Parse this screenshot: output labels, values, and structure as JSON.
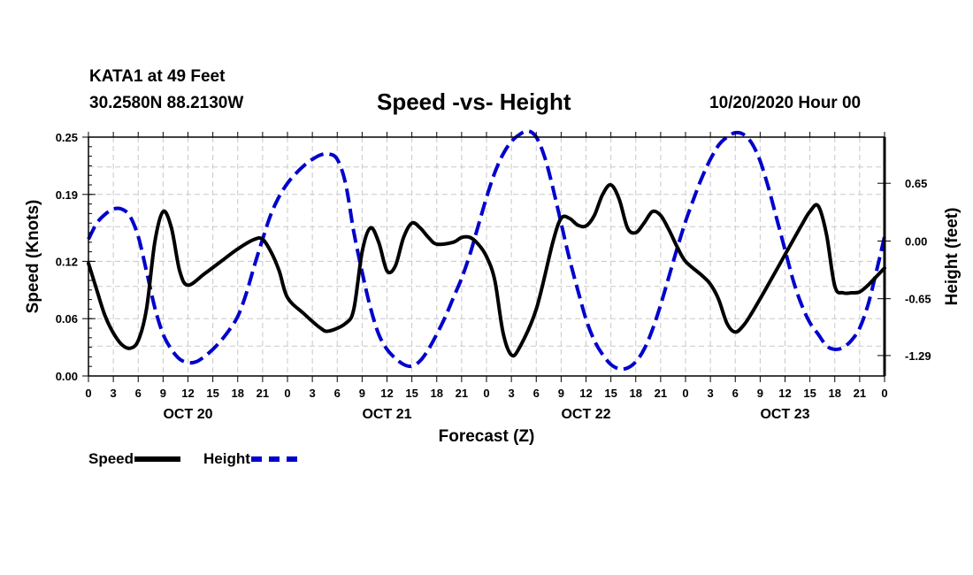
{
  "header": {
    "station": "KATA1 at 49 Feet",
    "coords": "30.2580N 88.2130W",
    "date": "10/20/2020 Hour 00"
  },
  "chart_data": {
    "type": "line",
    "title": "Speed -vs- Height",
    "xlabel": "Forecast (Z)",
    "ylabel": "Speed (Knots)",
    "y2label": "Height (feet)",
    "xlim": [
      0,
      96
    ],
    "ylim": [
      0,
      0.25
    ],
    "y2lim": [
      -1.52,
      1.17
    ],
    "grid": true,
    "legend_position": "bottom-left",
    "x_ticks": [
      0,
      3,
      6,
      9,
      12,
      15,
      18,
      21,
      24,
      27,
      30,
      33,
      36,
      39,
      42,
      45,
      48,
      51,
      54,
      57,
      60,
      63,
      66,
      69,
      72,
      75,
      78,
      81,
      84,
      87,
      90,
      93,
      96
    ],
    "x_tick_labels": [
      "0",
      "3",
      "6",
      "9",
      "12",
      "15",
      "18",
      "21",
      "0",
      "3",
      "6",
      "9",
      "12",
      "15",
      "18",
      "21",
      "0",
      "3",
      "6",
      "9",
      "12",
      "15",
      "18",
      "21",
      "0",
      "3",
      "6",
      "9",
      "12",
      "15",
      "18",
      "21",
      "0"
    ],
    "day_labels": [
      {
        "x": 12,
        "label": "OCT 20"
      },
      {
        "x": 36,
        "label": "OCT 21"
      },
      {
        "x": 60,
        "label": "OCT 22"
      },
      {
        "x": 84,
        "label": "OCT 23"
      }
    ],
    "y_ticks": [
      0.0,
      0.06,
      0.12,
      0.19,
      0.25
    ],
    "y_tick_labels": [
      "0.00",
      "0.06",
      "0.12",
      "0.19",
      "0.25"
    ],
    "y2_ticks": [
      0.65,
      0.0,
      -0.65,
      -1.29
    ],
    "y2_tick_labels": [
      "0.65",
      "0.00",
      "-0.65",
      "-1.29"
    ],
    "series": [
      {
        "name": "Speed",
        "axis": "left",
        "color": "#000000",
        "style": "solid",
        "points": [
          [
            0,
            0.118
          ],
          [
            1,
            0.09
          ],
          [
            2,
            0.063
          ],
          [
            3,
            0.045
          ],
          [
            4,
            0.033
          ],
          [
            5,
            0.029
          ],
          [
            6,
            0.037
          ],
          [
            7,
            0.07
          ],
          [
            8,
            0.14
          ],
          [
            9,
            0.172
          ],
          [
            10,
            0.155
          ],
          [
            11,
            0.11
          ],
          [
            12,
            0.095
          ],
          [
            14,
            0.107
          ],
          [
            16,
            0.12
          ],
          [
            18,
            0.133
          ],
          [
            20,
            0.143
          ],
          [
            21,
            0.143
          ],
          [
            22,
            0.13
          ],
          [
            23,
            0.11
          ],
          [
            24,
            0.082
          ],
          [
            26,
            0.065
          ],
          [
            28,
            0.05
          ],
          [
            29,
            0.047
          ],
          [
            31,
            0.055
          ],
          [
            32,
            0.07
          ],
          [
            33,
            0.13
          ],
          [
            34,
            0.155
          ],
          [
            35,
            0.14
          ],
          [
            36,
            0.11
          ],
          [
            37,
            0.115
          ],
          [
            38,
            0.145
          ],
          [
            39,
            0.16
          ],
          [
            40,
            0.155
          ],
          [
            41,
            0.145
          ],
          [
            42,
            0.138
          ],
          [
            44,
            0.14
          ],
          [
            45,
            0.145
          ],
          [
            46,
            0.145
          ],
          [
            47,
            0.138
          ],
          [
            48,
            0.125
          ],
          [
            49,
            0.1
          ],
          [
            50,
            0.045
          ],
          [
            51,
            0.022
          ],
          [
            52,
            0.03
          ],
          [
            54,
            0.07
          ],
          [
            56,
            0.14
          ],
          [
            57,
            0.165
          ],
          [
            58,
            0.165
          ],
          [
            59,
            0.158
          ],
          [
            60,
            0.157
          ],
          [
            61,
            0.168
          ],
          [
            62,
            0.19
          ],
          [
            63,
            0.2
          ],
          [
            64,
            0.185
          ],
          [
            65,
            0.155
          ],
          [
            66,
            0.15
          ],
          [
            67,
            0.16
          ],
          [
            68,
            0.172
          ],
          [
            69,
            0.168
          ],
          [
            70,
            0.153
          ],
          [
            71,
            0.135
          ],
          [
            72,
            0.12
          ],
          [
            74,
            0.105
          ],
          [
            75,
            0.096
          ],
          [
            76,
            0.08
          ],
          [
            77,
            0.055
          ],
          [
            78,
            0.046
          ],
          [
            79,
            0.053
          ],
          [
            80,
            0.066
          ],
          [
            82,
            0.096
          ],
          [
            84,
            0.127
          ],
          [
            86,
            0.158
          ],
          [
            87,
            0.172
          ],
          [
            88,
            0.178
          ],
          [
            89,
            0.148
          ],
          [
            90,
            0.094
          ],
          [
            91,
            0.087
          ],
          [
            92,
            0.087
          ],
          [
            93,
            0.088
          ],
          [
            94,
            0.095
          ],
          [
            96,
            0.113
          ]
        ]
      },
      {
        "name": "Height",
        "axis": "right",
        "color": "#0000cc",
        "style": "dashed",
        "points": [
          [
            0,
            0.02
          ],
          [
            1,
            0.2
          ],
          [
            2,
            0.3
          ],
          [
            3,
            0.36
          ],
          [
            4,
            0.36
          ],
          [
            5,
            0.28
          ],
          [
            6,
            0.05
          ],
          [
            7,
            -0.34
          ],
          [
            8,
            -0.75
          ],
          [
            9,
            -1.05
          ],
          [
            10,
            -1.22
          ],
          [
            11,
            -1.33
          ],
          [
            12,
            -1.37
          ],
          [
            13,
            -1.36
          ],
          [
            14,
            -1.3
          ],
          [
            15,
            -1.22
          ],
          [
            16,
            -1.12
          ],
          [
            17,
            -1.0
          ],
          [
            18,
            -0.85
          ],
          [
            19,
            -0.6
          ],
          [
            20,
            -0.28
          ],
          [
            21,
            0.02
          ],
          [
            22,
            0.3
          ],
          [
            23,
            0.5
          ],
          [
            24,
            0.65
          ],
          [
            25,
            0.76
          ],
          [
            26,
            0.85
          ],
          [
            27,
            0.92
          ],
          [
            28,
            0.97
          ],
          [
            29,
            0.98
          ],
          [
            30,
            0.92
          ],
          [
            31,
            0.65
          ],
          [
            32,
            0.1
          ],
          [
            33,
            -0.35
          ],
          [
            34,
            -0.75
          ],
          [
            35,
            -1.05
          ],
          [
            36,
            -1.22
          ],
          [
            37,
            -1.32
          ],
          [
            38,
            -1.39
          ],
          [
            39,
            -1.41
          ],
          [
            40,
            -1.35
          ],
          [
            41,
            -1.22
          ],
          [
            42,
            -1.05
          ],
          [
            43,
            -0.86
          ],
          [
            44,
            -0.64
          ],
          [
            45,
            -0.42
          ],
          [
            46,
            -0.15
          ],
          [
            47,
            0.17
          ],
          [
            48,
            0.49
          ],
          [
            49,
            0.77
          ],
          [
            50,
            0.98
          ],
          [
            51,
            1.12
          ],
          [
            52,
            1.2
          ],
          [
            53,
            1.24
          ],
          [
            54,
            1.17
          ],
          [
            55,
            0.95
          ],
          [
            56,
            0.6
          ],
          [
            57,
            0.2
          ],
          [
            58,
            -0.2
          ],
          [
            59,
            -0.55
          ],
          [
            60,
            -0.88
          ],
          [
            61,
            -1.12
          ],
          [
            62,
            -1.28
          ],
          [
            63,
            -1.39
          ],
          [
            64,
            -1.44
          ],
          [
            65,
            -1.43
          ],
          [
            66,
            -1.36
          ],
          [
            67,
            -1.22
          ],
          [
            68,
            -1.0
          ],
          [
            69,
            -0.72
          ],
          [
            70,
            -0.4
          ],
          [
            71,
            -0.08
          ],
          [
            72,
            0.22
          ],
          [
            73,
            0.48
          ],
          [
            74,
            0.72
          ],
          [
            75,
            0.92
          ],
          [
            76,
            1.08
          ],
          [
            77,
            1.17
          ],
          [
            78,
            1.22
          ],
          [
            79,
            1.2
          ],
          [
            80,
            1.1
          ],
          [
            81,
            0.9
          ],
          [
            82,
            0.6
          ],
          [
            83,
            0.25
          ],
          [
            84,
            -0.1
          ],
          [
            85,
            -0.45
          ],
          [
            86,
            -0.72
          ],
          [
            87,
            -0.92
          ],
          [
            88,
            -1.05
          ],
          [
            89,
            -1.18
          ],
          [
            90,
            -1.22
          ],
          [
            91,
            -1.2
          ],
          [
            92,
            -1.12
          ],
          [
            93,
            -0.98
          ],
          [
            94,
            -0.72
          ],
          [
            95,
            -0.35
          ],
          [
            96,
            0.05
          ]
        ]
      }
    ]
  }
}
